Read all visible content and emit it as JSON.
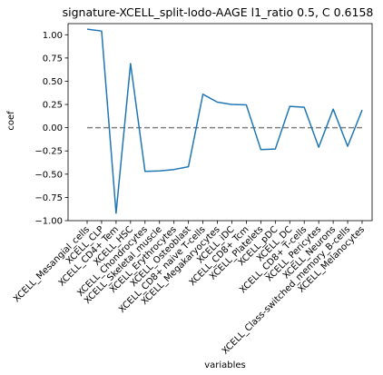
{
  "chart_data": {
    "type": "line",
    "title": "signature-XCELL_split-lodo-AAGE l1_ratio 0.5, C 0.6158",
    "xlabel": "variables",
    "ylabel": "coef",
    "ylim": [
      -1.0,
      1.12
    ],
    "yticks": [
      1.0,
      0.75,
      0.5,
      0.25,
      0.0,
      -0.25,
      -0.5,
      -0.75,
      -1.0
    ],
    "ytick_labels": [
      "1.00",
      "0.75",
      "0.50",
      "0.25",
      "0.00",
      "−0.25",
      "−0.50",
      "−0.75",
      "−1.00"
    ],
    "x_tick_labels": [
      "XCELL_Mesangial_cells",
      "XCELL_CLP",
      "XCELL_CD4+ Tem",
      "XCELL_HSC",
      "XCELL_Chondrocytes",
      "XCELL_Skeletal_muscle",
      "XCELL_Erythrocytes",
      "XCELL_Osteoblast",
      "XCELL_CD8+ naive T-cells",
      "XCELL_Megakaryocytes",
      "XCELL_iDC",
      "XCELL_CD8+ Tcm",
      "XCELL_Platelets",
      "XCELL_pDC",
      "XCELL_DC",
      "XCELL_CD8+ T-cells",
      "XCELL_Pericytes",
      "XCELL_Neurons",
      "XCELL_Class-switched_memory_B-cells",
      "XCELL_Melanocytes"
    ],
    "series": [
      {
        "name": "",
        "values": [
          1.06,
          1.04,
          -0.92,
          0.69,
          -0.47,
          -0.465,
          -0.45,
          -0.42,
          0.36,
          0.275,
          0.25,
          0.245,
          -0.235,
          -0.23,
          0.23,
          0.22,
          -0.21,
          0.2,
          -0.2,
          0.19
        ],
        "color": "#1f77b4"
      }
    ],
    "reference_line": {
      "y": 0.0,
      "style": "dashed",
      "color": "#808080"
    },
    "grid": false,
    "legend": "none"
  }
}
